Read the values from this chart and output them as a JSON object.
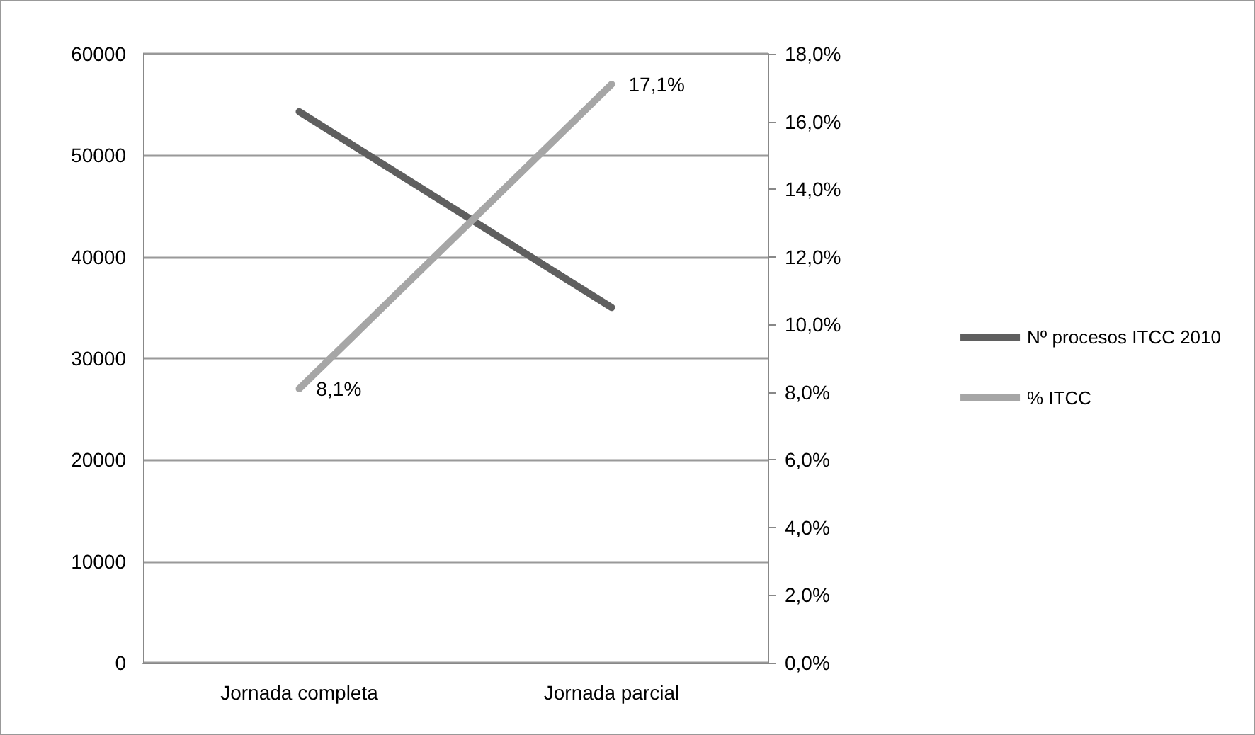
{
  "chart_data": {
    "type": "line",
    "categories": [
      "Jornada completa",
      "Jornada parcial"
    ],
    "series": [
      {
        "name": "Nº procesos ITCC 2010",
        "color": "#5f5f5f",
        "values": [
          54300,
          35000
        ]
      },
      {
        "name": "% ITCC",
        "color": "#a6a6a6",
        "values": [
          8.1,
          17.1
        ],
        "axis": "y2",
        "value_labels": [
          "8,1%",
          "17,1%"
        ]
      }
    ],
    "ylim": [
      0,
      60000
    ],
    "yticks": [
      0,
      10000,
      20000,
      30000,
      40000,
      50000,
      60000
    ],
    "y2lim": [
      0,
      18
    ],
    "y2ticks": [
      {
        "value": 0,
        "label": "0,0%"
      },
      {
        "value": 2,
        "label": "2,0%"
      },
      {
        "value": 4,
        "label": "4,0%"
      },
      {
        "value": 6,
        "label": "6,0%"
      },
      {
        "value": 8,
        "label": "8,0%"
      },
      {
        "value": 10,
        "label": "10,0%"
      },
      {
        "value": 12,
        "label": "12,0%"
      },
      {
        "value": 14,
        "label": "14,0%"
      },
      {
        "value": 16,
        "label": "16,0%"
      },
      {
        "value": 18,
        "label": "18,0%"
      }
    ],
    "grid": "y",
    "legend": "right",
    "marker": "none",
    "line_style": "solid"
  }
}
